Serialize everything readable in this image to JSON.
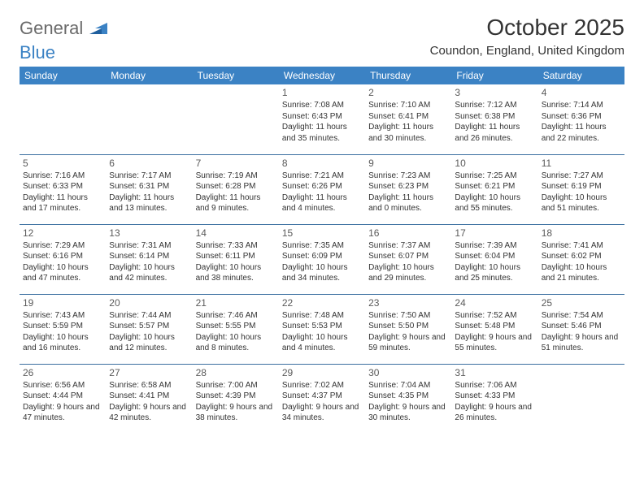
{
  "logo": {
    "line1": "General",
    "line2": "Blue"
  },
  "title": "October 2025",
  "location": "Coundon, England, United Kingdom",
  "colors": {
    "header_bg": "#3b82c4",
    "header_text": "#ffffff",
    "row_border": "#3b6fa0",
    "body_text": "#333333",
    "daynum_text": "#5a5a5a",
    "logo_gray": "#6a6a6a",
    "logo_blue": "#3b82c4",
    "background": "#ffffff"
  },
  "typography": {
    "title_fontsize": 28,
    "location_fontsize": 15,
    "header_fontsize": 12,
    "daynum_fontsize": 12,
    "info_fontsize": 10
  },
  "weekdays": [
    "Sunday",
    "Monday",
    "Tuesday",
    "Wednesday",
    "Thursday",
    "Friday",
    "Saturday"
  ],
  "weeks": [
    [
      null,
      null,
      null,
      {
        "day": "1",
        "sunrise": "Sunrise: 7:08 AM",
        "sunset": "Sunset: 6:43 PM",
        "daylight": "Daylight: 11 hours and 35 minutes."
      },
      {
        "day": "2",
        "sunrise": "Sunrise: 7:10 AM",
        "sunset": "Sunset: 6:41 PM",
        "daylight": "Daylight: 11 hours and 30 minutes."
      },
      {
        "day": "3",
        "sunrise": "Sunrise: 7:12 AM",
        "sunset": "Sunset: 6:38 PM",
        "daylight": "Daylight: 11 hours and 26 minutes."
      },
      {
        "day": "4",
        "sunrise": "Sunrise: 7:14 AM",
        "sunset": "Sunset: 6:36 PM",
        "daylight": "Daylight: 11 hours and 22 minutes."
      }
    ],
    [
      {
        "day": "5",
        "sunrise": "Sunrise: 7:16 AM",
        "sunset": "Sunset: 6:33 PM",
        "daylight": "Daylight: 11 hours and 17 minutes."
      },
      {
        "day": "6",
        "sunrise": "Sunrise: 7:17 AM",
        "sunset": "Sunset: 6:31 PM",
        "daylight": "Daylight: 11 hours and 13 minutes."
      },
      {
        "day": "7",
        "sunrise": "Sunrise: 7:19 AM",
        "sunset": "Sunset: 6:28 PM",
        "daylight": "Daylight: 11 hours and 9 minutes."
      },
      {
        "day": "8",
        "sunrise": "Sunrise: 7:21 AM",
        "sunset": "Sunset: 6:26 PM",
        "daylight": "Daylight: 11 hours and 4 minutes."
      },
      {
        "day": "9",
        "sunrise": "Sunrise: 7:23 AM",
        "sunset": "Sunset: 6:23 PM",
        "daylight": "Daylight: 11 hours and 0 minutes."
      },
      {
        "day": "10",
        "sunrise": "Sunrise: 7:25 AM",
        "sunset": "Sunset: 6:21 PM",
        "daylight": "Daylight: 10 hours and 55 minutes."
      },
      {
        "day": "11",
        "sunrise": "Sunrise: 7:27 AM",
        "sunset": "Sunset: 6:19 PM",
        "daylight": "Daylight: 10 hours and 51 minutes."
      }
    ],
    [
      {
        "day": "12",
        "sunrise": "Sunrise: 7:29 AM",
        "sunset": "Sunset: 6:16 PM",
        "daylight": "Daylight: 10 hours and 47 minutes."
      },
      {
        "day": "13",
        "sunrise": "Sunrise: 7:31 AM",
        "sunset": "Sunset: 6:14 PM",
        "daylight": "Daylight: 10 hours and 42 minutes."
      },
      {
        "day": "14",
        "sunrise": "Sunrise: 7:33 AM",
        "sunset": "Sunset: 6:11 PM",
        "daylight": "Daylight: 10 hours and 38 minutes."
      },
      {
        "day": "15",
        "sunrise": "Sunrise: 7:35 AM",
        "sunset": "Sunset: 6:09 PM",
        "daylight": "Daylight: 10 hours and 34 minutes."
      },
      {
        "day": "16",
        "sunrise": "Sunrise: 7:37 AM",
        "sunset": "Sunset: 6:07 PM",
        "daylight": "Daylight: 10 hours and 29 minutes."
      },
      {
        "day": "17",
        "sunrise": "Sunrise: 7:39 AM",
        "sunset": "Sunset: 6:04 PM",
        "daylight": "Daylight: 10 hours and 25 minutes."
      },
      {
        "day": "18",
        "sunrise": "Sunrise: 7:41 AM",
        "sunset": "Sunset: 6:02 PM",
        "daylight": "Daylight: 10 hours and 21 minutes."
      }
    ],
    [
      {
        "day": "19",
        "sunrise": "Sunrise: 7:43 AM",
        "sunset": "Sunset: 5:59 PM",
        "daylight": "Daylight: 10 hours and 16 minutes."
      },
      {
        "day": "20",
        "sunrise": "Sunrise: 7:44 AM",
        "sunset": "Sunset: 5:57 PM",
        "daylight": "Daylight: 10 hours and 12 minutes."
      },
      {
        "day": "21",
        "sunrise": "Sunrise: 7:46 AM",
        "sunset": "Sunset: 5:55 PM",
        "daylight": "Daylight: 10 hours and 8 minutes."
      },
      {
        "day": "22",
        "sunrise": "Sunrise: 7:48 AM",
        "sunset": "Sunset: 5:53 PM",
        "daylight": "Daylight: 10 hours and 4 minutes."
      },
      {
        "day": "23",
        "sunrise": "Sunrise: 7:50 AM",
        "sunset": "Sunset: 5:50 PM",
        "daylight": "Daylight: 9 hours and 59 minutes."
      },
      {
        "day": "24",
        "sunrise": "Sunrise: 7:52 AM",
        "sunset": "Sunset: 5:48 PM",
        "daylight": "Daylight: 9 hours and 55 minutes."
      },
      {
        "day": "25",
        "sunrise": "Sunrise: 7:54 AM",
        "sunset": "Sunset: 5:46 PM",
        "daylight": "Daylight: 9 hours and 51 minutes."
      }
    ],
    [
      {
        "day": "26",
        "sunrise": "Sunrise: 6:56 AM",
        "sunset": "Sunset: 4:44 PM",
        "daylight": "Daylight: 9 hours and 47 minutes."
      },
      {
        "day": "27",
        "sunrise": "Sunrise: 6:58 AM",
        "sunset": "Sunset: 4:41 PM",
        "daylight": "Daylight: 9 hours and 42 minutes."
      },
      {
        "day": "28",
        "sunrise": "Sunrise: 7:00 AM",
        "sunset": "Sunset: 4:39 PM",
        "daylight": "Daylight: 9 hours and 38 minutes."
      },
      {
        "day": "29",
        "sunrise": "Sunrise: 7:02 AM",
        "sunset": "Sunset: 4:37 PM",
        "daylight": "Daylight: 9 hours and 34 minutes."
      },
      {
        "day": "30",
        "sunrise": "Sunrise: 7:04 AM",
        "sunset": "Sunset: 4:35 PM",
        "daylight": "Daylight: 9 hours and 30 minutes."
      },
      {
        "day": "31",
        "sunrise": "Sunrise: 7:06 AM",
        "sunset": "Sunset: 4:33 PM",
        "daylight": "Daylight: 9 hours and 26 minutes."
      },
      null
    ]
  ]
}
